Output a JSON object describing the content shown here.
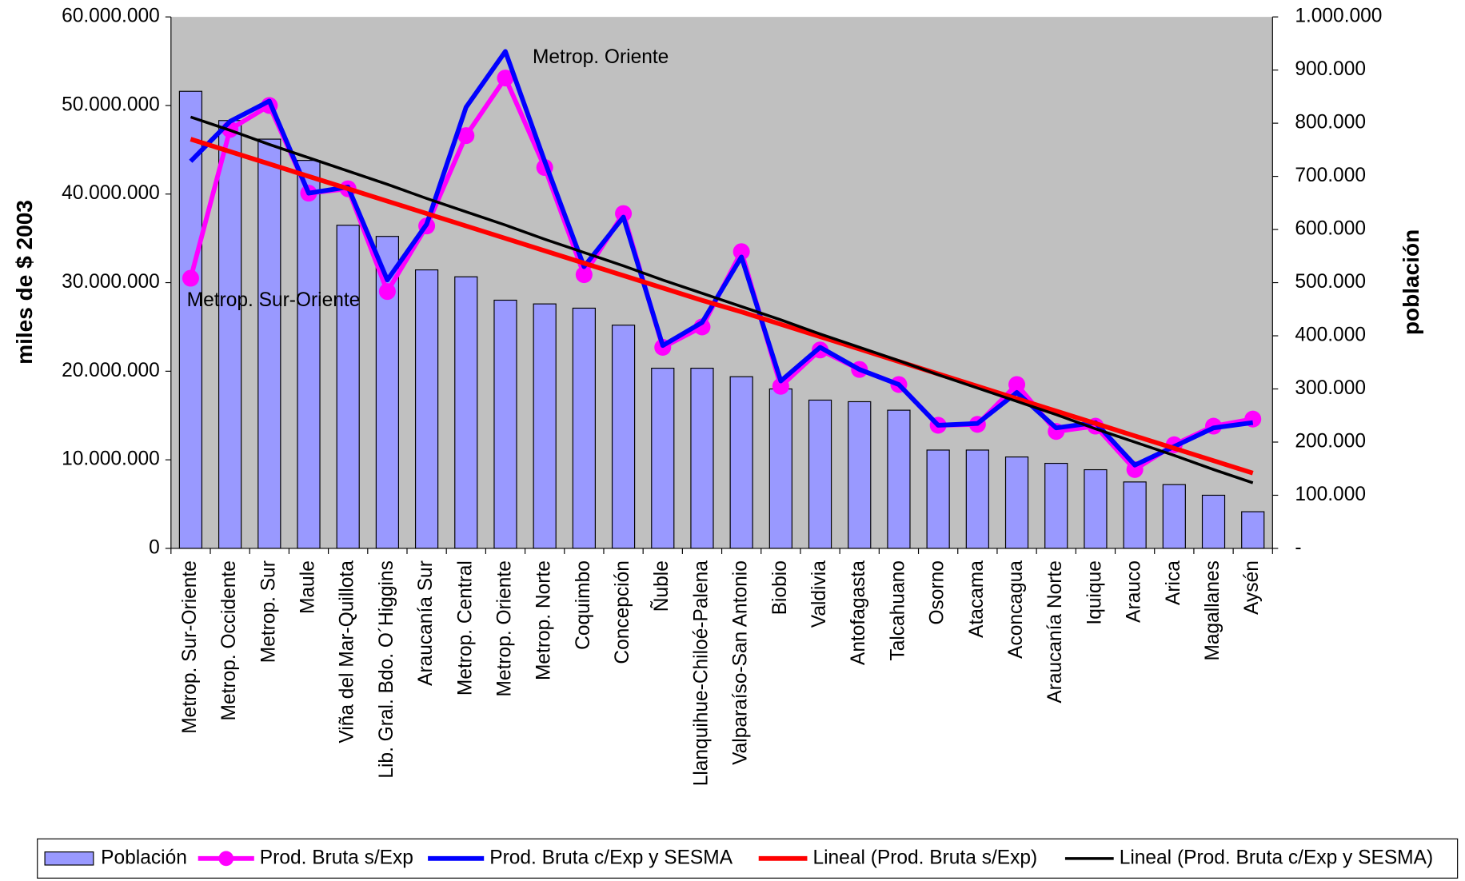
{
  "chart_data": {
    "type": "bar",
    "y_axis_label": "miles de $ 2003",
    "y2_axis_label": "población",
    "categories": [
      "Metrop. Sur-Oriente",
      "Metrop. Occidente",
      "Metrop. Sur",
      "Maule",
      "Viña del Mar-Quillota",
      "Lib. Gral. Bdo. O´Higgins",
      "Araucanía Sur",
      "Metrop. Central",
      "Metrop. Oriente",
      "Metrop. Norte",
      "Coquimbo",
      "Concepción",
      "Ñuble",
      "Llanquihue-Chiloé-Palena",
      "Valparaíso-San Antonio",
      "Biobio",
      "Valdivia",
      "Antofagasta",
      "Talcahuano",
      "Osorno",
      "Atacama",
      "Aconcagua",
      "Araucanía Norte",
      "Iquique",
      "Arauco",
      "Arica",
      "Magallanes",
      "Aysén"
    ],
    "series": [
      {
        "name": "Población",
        "type": "bar",
        "axis": "y2",
        "color": "#9999ff",
        "values": [
          860000,
          805000,
          770000,
          730000,
          608000,
          587000,
          524000,
          511000,
          467000,
          460000,
          452000,
          420000,
          339000,
          339000,
          323000,
          300000,
          279000,
          276000,
          260000,
          185000,
          185000,
          172000,
          160000,
          148000,
          125000,
          120000,
          100000,
          69000
        ]
      },
      {
        "name": "Prod. Bruta s/Exp",
        "type": "line",
        "marker": true,
        "color": "#ff00ff",
        "values": [
          30500000,
          47300000,
          50000000,
          40100000,
          40600000,
          29000000,
          36400000,
          46600000,
          53100000,
          43000000,
          30900000,
          37800000,
          22700000,
          25000000,
          33500000,
          18300000,
          22400000,
          20200000,
          18500000,
          13900000,
          14000000,
          18500000,
          13200000,
          13800000,
          8900000,
          11700000,
          13800000,
          14600000
        ]
      },
      {
        "name": "Prod. Bruta c/Exp y SESMA",
        "type": "line",
        "color": "#0000ff",
        "values": [
          43700000,
          48200000,
          50500000,
          40100000,
          40800000,
          30300000,
          36600000,
          49800000,
          56100000,
          43700000,
          31800000,
          37400000,
          22900000,
          25500000,
          32900000,
          18900000,
          22700000,
          20200000,
          18500000,
          13900000,
          14100000,
          17600000,
          13600000,
          14200000,
          9400000,
          11500000,
          13600000,
          14200000
        ]
      },
      {
        "name": "Lineal (Prod. Bruta s/Exp)",
        "type": "line",
        "color": "#ff0000",
        "values": [
          46200000,
          44800000,
          43400000,
          42000000,
          40600000,
          39200000,
          37800000,
          36400000,
          35000000,
          33600000,
          32200000,
          30800000,
          29400000,
          28000000,
          26700000,
          25300000,
          23900000,
          22500000,
          21100000,
          19700000,
          18300000,
          16900000,
          15500000,
          14100000,
          12700000,
          11300000,
          9900000,
          8500000
        ]
      },
      {
        "name": "Lineal (Prod. Bruta c/Exp y SESMA)",
        "type": "line",
        "color": "#000000",
        "values": [
          48700000,
          47200000,
          45600000,
          44100000,
          42600000,
          41100000,
          39500000,
          38000000,
          36500000,
          34900000,
          33400000,
          31900000,
          30300000,
          28800000,
          27300000,
          25800000,
          24200000,
          22700000,
          21200000,
          19600000,
          18100000,
          16600000,
          15100000,
          13500000,
          12000000,
          10500000,
          8900000,
          7400000
        ]
      }
    ],
    "annotations": [
      "Metrop. Oriente",
      "Metrop. Sur-Oriente"
    ],
    "ylim": [
      0,
      60000000
    ],
    "yticks": [
      0,
      {
        "value": 10000000,
        "label": "10.000.000"
      },
      {
        "value": 20000000,
        "label": "20.000.000"
      },
      {
        "value": 30000000,
        "label": "30.000.000"
      },
      {
        "value": 40000000,
        "label": "40.000.000"
      },
      {
        "value": 50000000,
        "label": "50.000.000"
      },
      {
        "value": 60000000,
        "label": "60.000.000"
      }
    ],
    "y2lim": [
      0,
      1000000
    ],
    "y2ticks": [
      {
        "value": 0,
        "label": "-"
      },
      {
        "value": 100000,
        "label": "100.000"
      },
      {
        "value": 200000,
        "label": "200.000"
      },
      {
        "value": 300000,
        "label": "300.000"
      },
      {
        "value": 400000,
        "label": "400.000"
      },
      {
        "value": 500000,
        "label": "500.000"
      },
      {
        "value": 600000,
        "label": "600.000"
      },
      {
        "value": 700000,
        "label": "700.000"
      },
      {
        "value": 800000,
        "label": "800.000"
      },
      {
        "value": 900000,
        "label": "900.000"
      },
      {
        "value": 1000000,
        "label": "1.000.000"
      }
    ],
    "plot_background": "#c0c0c0",
    "legend": "bottom"
  }
}
